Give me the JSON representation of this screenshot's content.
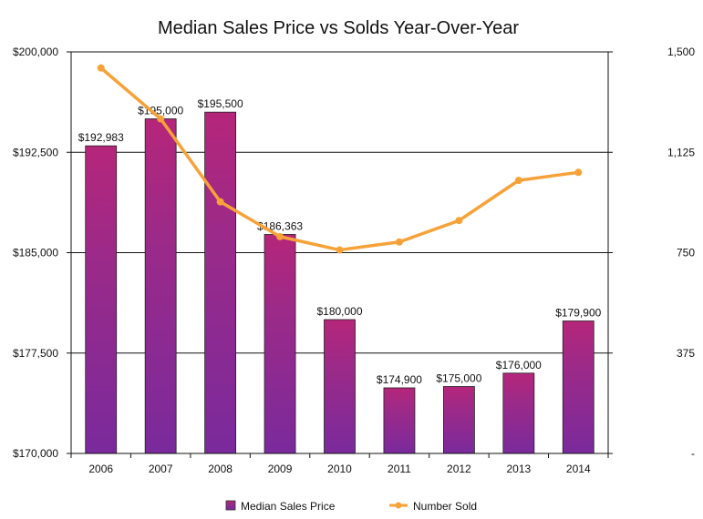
{
  "chart_data": {
    "type": "bar",
    "title": "Median Sales Price vs Solds Year-Over-Year",
    "categories": [
      "2006",
      "2007",
      "2008",
      "2009",
      "2010",
      "2011",
      "2012",
      "2013",
      "2014"
    ],
    "series": [
      {
        "name": "Median Sales Price",
        "type": "bar",
        "axis": "left",
        "values": [
          192983,
          195000,
          195500,
          186363,
          180000,
          174900,
          175000,
          176000,
          179900
        ],
        "labels": [
          "$192,983",
          "$195,000",
          "$195,500",
          "$186,363",
          "$180,000",
          "$174,900",
          "$175,000",
          "$176,000",
          "$179,900"
        ]
      },
      {
        "name": "Number Sold",
        "type": "line",
        "axis": "right",
        "values": [
          1440,
          1250,
          940,
          810,
          760,
          790,
          870,
          1020,
          1050
        ]
      }
    ],
    "y_left": {
      "min": 170000,
      "max": 200000,
      "ticks": [
        170000,
        177500,
        185000,
        192500,
        200000
      ],
      "tick_labels": [
        "$170,000",
        "$177,500",
        "$185,000",
        "$192,500",
        "$200,000"
      ]
    },
    "y_right": {
      "min": 0,
      "max": 1500,
      "ticks": [
        0,
        375,
        750,
        1125,
        1500
      ],
      "tick_labels": [
        "-",
        "375",
        "750",
        "1,125",
        "1,500"
      ]
    },
    "grid": true,
    "legend": {
      "position": "bottom"
    },
    "colors": {
      "bar_top": "#b5267a",
      "bar_bottom": "#7a2a9c",
      "line": "#f7a238",
      "grid": "#111111"
    }
  }
}
